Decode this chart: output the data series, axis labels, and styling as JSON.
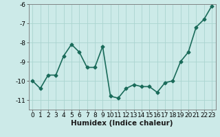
{
  "x": [
    0,
    1,
    2,
    3,
    4,
    5,
    6,
    7,
    8,
    9,
    10,
    11,
    12,
    13,
    14,
    15,
    16,
    17,
    18,
    19,
    20,
    21,
    22,
    23
  ],
  "y": [
    -10.0,
    -10.4,
    -9.7,
    -9.7,
    -8.7,
    -8.1,
    -8.5,
    -9.3,
    -9.3,
    -8.2,
    -10.8,
    -10.9,
    -10.4,
    -10.2,
    -10.3,
    -10.3,
    -10.6,
    -10.1,
    -10.0,
    -9.0,
    -8.5,
    -7.2,
    -6.8,
    -6.1
  ],
  "line_color": "#1a6b5a",
  "marker": "D",
  "marker_size": 2.5,
  "bg_color": "#cceae8",
  "grid_color": "#aad4d0",
  "xlabel": "Humidex (Indice chaleur)",
  "ylim": [
    -11.5,
    -6.0
  ],
  "xlim": [
    -0.5,
    23.5
  ],
  "yticks": [
    -11,
    -10,
    -9,
    -8,
    -7,
    -6
  ],
  "xticks": [
    0,
    1,
    2,
    3,
    4,
    5,
    6,
    7,
    8,
    9,
    10,
    11,
    12,
    13,
    14,
    15,
    16,
    17,
    18,
    19,
    20,
    21,
    22,
    23
  ],
  "tick_fontsize": 6.5,
  "xlabel_fontsize": 7.5,
  "line_width": 1.2,
  "fig_width": 3.2,
  "fig_height": 2.0,
  "dpi": 100
}
